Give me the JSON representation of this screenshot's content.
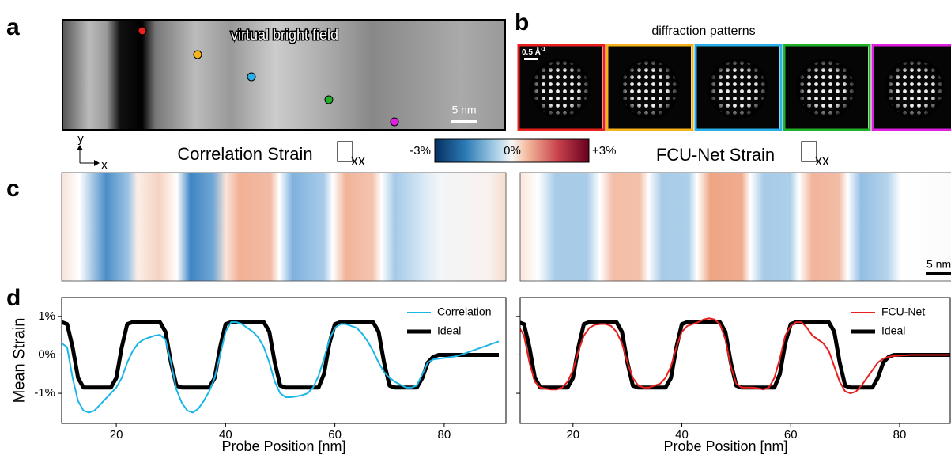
{
  "figure": {
    "panel_labels": [
      "a",
      "b",
      "c",
      "d"
    ],
    "bright_field_title": "virtual bright field",
    "bright_field_scale": "5 nm",
    "diffraction_title": "diffraction patterns",
    "diffraction_scale": "0.5 Å",
    "diffraction_scale_sup": "-1",
    "axis_y": "y",
    "axis_x": "x",
    "correlation_title": "Correlation Strain",
    "fcunet_title": "FCU-Net Strain",
    "strain_subscript": "xx",
    "colorbar_labels": [
      "-3%",
      "0%",
      "+3%"
    ],
    "strain_scale": "5 nm"
  },
  "chart_data": [
    {
      "type": "line",
      "xlabel": "Probe Position [nm]",
      "ylabel": "Mean Strain",
      "legend": "upper right",
      "xlim": [
        10,
        91.3
      ],
      "ylim": [
        -1.78,
        1.49
      ],
      "xticks": [
        20,
        40,
        60,
        80
      ],
      "yticks": [
        {
          "value": -1,
          "label": "-1%"
        },
        {
          "value": 0,
          "label": "0%"
        },
        {
          "value": 1,
          "label": "1%"
        }
      ],
      "x": [
        10,
        11,
        12,
        13,
        14,
        15,
        16,
        17,
        18,
        19,
        20,
        21,
        22,
        23,
        24,
        25,
        26,
        27,
        28,
        29,
        30,
        31,
        32,
        33,
        34,
        35,
        36,
        37,
        38,
        39,
        40,
        41,
        42,
        43,
        44,
        45,
        46,
        47,
        48,
        49,
        50,
        51,
        52,
        53,
        54,
        55,
        56,
        57,
        58,
        59,
        60,
        61,
        62,
        63,
        64,
        65,
        66,
        67,
        68,
        69,
        70,
        71,
        72,
        73,
        74,
        75,
        76,
        77,
        78,
        79,
        80,
        81,
        82,
        83,
        84,
        85,
        86,
        87,
        88,
        89,
        90
      ],
      "series": [
        {
          "name": "Correlation",
          "color": "#1ab6e8",
          "width": 2,
          "values": [
            0.3,
            0.2,
            -0.6,
            -1.2,
            -1.45,
            -1.5,
            -1.45,
            -1.3,
            -1.15,
            -1.0,
            -0.85,
            -0.6,
            -0.2,
            0.1,
            0.3,
            0.4,
            0.45,
            0.5,
            0.52,
            0.4,
            -0.2,
            -0.9,
            -1.25,
            -1.45,
            -1.5,
            -1.4,
            -1.2,
            -0.95,
            -0.6,
            0.0,
            0.6,
            0.85,
            0.85,
            0.8,
            0.7,
            0.6,
            0.45,
            0.2,
            -0.2,
            -0.7,
            -1.0,
            -1.1,
            -1.1,
            -1.08,
            -1.05,
            -1.0,
            -0.85,
            -0.55,
            -0.1,
            0.4,
            0.7,
            0.8,
            0.8,
            0.75,
            0.7,
            0.55,
            0.35,
            0.1,
            -0.2,
            -0.45,
            -0.6,
            -0.7,
            -0.78,
            -0.85,
            -0.85,
            -0.8,
            -0.5,
            -0.2,
            -0.12,
            -0.1,
            -0.08,
            -0.06,
            -0.04,
            0.0,
            0.05,
            0.1,
            0.15,
            0.2,
            0.25,
            0.3,
            0.35
          ]
        },
        {
          "name": "Ideal",
          "color": "#000000",
          "width": 5,
          "values": [
            0.85,
            0.8,
            0.2,
            -0.6,
            -0.85,
            -0.85,
            -0.85,
            -0.85,
            -0.85,
            -0.85,
            -0.6,
            0.2,
            0.8,
            0.85,
            0.85,
            0.85,
            0.85,
            0.85,
            0.85,
            0.6,
            -0.2,
            -0.8,
            -0.85,
            -0.85,
            -0.85,
            -0.85,
            -0.85,
            -0.85,
            -0.6,
            0.2,
            0.8,
            0.85,
            0.85,
            0.85,
            0.85,
            0.85,
            0.85,
            0.85,
            0.6,
            -0.2,
            -0.8,
            -0.85,
            -0.85,
            -0.85,
            -0.85,
            -0.85,
            -0.85,
            -0.85,
            -0.5,
            0.3,
            0.8,
            0.85,
            0.85,
            0.85,
            0.85,
            0.85,
            0.85,
            0.85,
            0.6,
            -0.2,
            -0.8,
            -0.85,
            -0.85,
            -0.85,
            -0.85,
            -0.85,
            -0.6,
            -0.2,
            -0.05,
            0,
            0,
            0,
            0,
            0,
            0,
            0,
            0,
            0,
            0,
            0,
            0
          ]
        }
      ]
    },
    {
      "type": "line",
      "xlabel": "Probe Position [nm]",
      "legend": "upper right",
      "xlim": [
        10.3,
        89.3
      ],
      "ylim": [
        -1.78,
        1.49
      ],
      "xticks": [
        20,
        40,
        60,
        80
      ],
      "yticks": [
        -1,
        0,
        1
      ],
      "x": [
        10,
        11,
        12,
        13,
        14,
        15,
        16,
        17,
        18,
        19,
        20,
        21,
        22,
        23,
        24,
        25,
        26,
        27,
        28,
        29,
        30,
        31,
        32,
        33,
        34,
        35,
        36,
        37,
        38,
        39,
        40,
        41,
        42,
        43,
        44,
        45,
        46,
        47,
        48,
        49,
        50,
        51,
        52,
        53,
        54,
        55,
        56,
        57,
        58,
        59,
        60,
        61,
        62,
        63,
        64,
        65,
        66,
        67,
        68,
        69,
        70,
        71,
        72,
        73,
        74,
        75,
        76,
        77,
        78,
        79,
        80,
        81,
        82,
        83,
        84,
        85,
        86,
        87,
        88,
        89,
        90
      ],
      "series": [
        {
          "name": "FCU-Net",
          "color": "#e8201e",
          "width": 2,
          "values": [
            0.75,
            0.5,
            -0.2,
            -0.7,
            -0.85,
            -0.88,
            -0.9,
            -0.9,
            -0.85,
            -0.7,
            -0.4,
            0.1,
            0.5,
            0.7,
            0.78,
            0.8,
            0.8,
            0.75,
            0.6,
            0.3,
            -0.2,
            -0.6,
            -0.8,
            -0.85,
            -0.85,
            -0.8,
            -0.75,
            -0.6,
            -0.3,
            0.2,
            0.6,
            0.75,
            0.8,
            0.85,
            0.92,
            0.95,
            0.92,
            0.8,
            0.4,
            -0.3,
            -0.75,
            -0.85,
            -0.85,
            -0.85,
            -0.87,
            -0.9,
            -0.85,
            -0.6,
            -0.1,
            0.5,
            0.75,
            0.85,
            0.85,
            0.7,
            0.5,
            0.4,
            0.3,
            0.1,
            -0.3,
            -0.7,
            -0.95,
            -1.0,
            -0.95,
            -0.8,
            -0.6,
            -0.4,
            -0.2,
            -0.1,
            -0.05,
            -0.03,
            -0.02,
            -0.01,
            0,
            0,
            0,
            0,
            0,
            0,
            0,
            0,
            0
          ]
        },
        {
          "name": "Ideal",
          "color": "#000000",
          "width": 5,
          "values": [
            0.85,
            0.8,
            0.2,
            -0.6,
            -0.85,
            -0.85,
            -0.85,
            -0.85,
            -0.85,
            -0.85,
            -0.6,
            0.2,
            0.8,
            0.85,
            0.85,
            0.85,
            0.85,
            0.85,
            0.85,
            0.6,
            -0.2,
            -0.8,
            -0.85,
            -0.85,
            -0.85,
            -0.85,
            -0.85,
            -0.85,
            -0.6,
            0.2,
            0.8,
            0.85,
            0.85,
            0.85,
            0.85,
            0.85,
            0.85,
            0.85,
            0.6,
            -0.2,
            -0.8,
            -0.85,
            -0.85,
            -0.85,
            -0.85,
            -0.85,
            -0.85,
            -0.85,
            -0.5,
            0.3,
            0.8,
            0.85,
            0.85,
            0.85,
            0.85,
            0.85,
            0.85,
            0.85,
            0.6,
            -0.2,
            -0.8,
            -0.85,
            -0.85,
            -0.85,
            -0.85,
            -0.85,
            -0.6,
            -0.2,
            -0.05,
            0,
            0,
            0,
            0,
            0,
            0,
            0,
            0,
            0,
            0,
            0,
            0
          ]
        }
      ]
    }
  ]
}
